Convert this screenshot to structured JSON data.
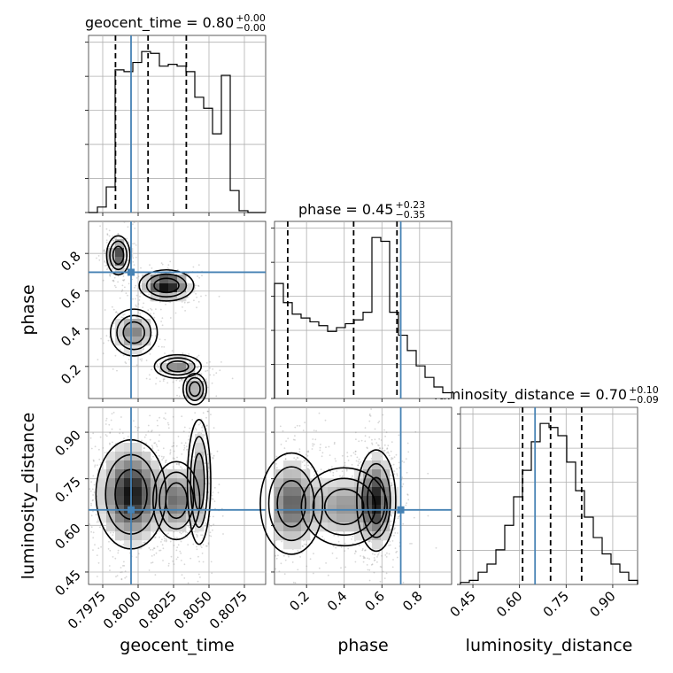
{
  "chart_data": {
    "type": "corner",
    "parameters": [
      "geocent_time",
      "phase",
      "luminosity_distance"
    ],
    "truth": {
      "geocent_time": 0.7995,
      "phase": 0.7,
      "luminosity_distance": 0.65
    },
    "titles": [
      {
        "name": "geocent_time",
        "median": "0.80",
        "plus": "+0.00",
        "minus": "−0.00"
      },
      {
        "name": "phase",
        "median": "0.45",
        "plus": "+0.23",
        "minus": "−0.35"
      },
      {
        "name": "luminosity_distance",
        "median": "0.70",
        "plus": "+0.10",
        "minus": "−0.09"
      }
    ],
    "ranges": {
      "geocent_time": [
        0.7965,
        0.809
      ],
      "phase": [
        0.03,
        0.97
      ],
      "luminosity_distance": [
        0.41,
        0.98
      ]
    },
    "quantiles": {
      "geocent_time": [
        0.7984,
        0.8007,
        0.8034
      ],
      "phase": [
        0.1,
        0.45,
        0.68
      ],
      "luminosity_distance": [
        0.61,
        0.7,
        0.8
      ]
    },
    "ticks": {
      "geocent_time": [
        "0.7975",
        "0.8000",
        "0.8025",
        "0.8050",
        "0.8075"
      ],
      "phase": [
        "0.2",
        "0.4",
        "0.6",
        "0.8"
      ],
      "luminosity_distance": [
        "0.45",
        "0.60",
        "0.75",
        "0.90"
      ]
    },
    "histograms": {
      "geocent_time": {
        "bin_start": 0.7965,
        "bin_width": 0.000625,
        "counts": [
          0,
          3,
          14,
          78,
          77,
          82,
          88,
          87,
          80,
          81,
          80,
          77,
          63,
          57,
          43,
          75,
          12,
          1,
          0,
          0
        ]
      },
      "phase": {
        "bin_start": 0.03,
        "bin_width": 0.047,
        "counts": [
          60,
          50,
          44,
          42,
          40,
          38,
          35,
          37,
          39,
          41,
          45,
          84,
          82,
          45,
          33,
          25,
          17,
          11,
          6,
          3
        ]
      },
      "luminosity_distance": {
        "bin_start": 0.41,
        "bin_width": 0.0285,
        "counts": [
          1,
          2,
          6,
          10,
          17,
          29,
          43,
          56,
          70,
          79,
          77,
          73,
          60,
          46,
          33,
          23,
          15,
          10,
          6,
          2
        ]
      }
    },
    "grid": true
  }
}
